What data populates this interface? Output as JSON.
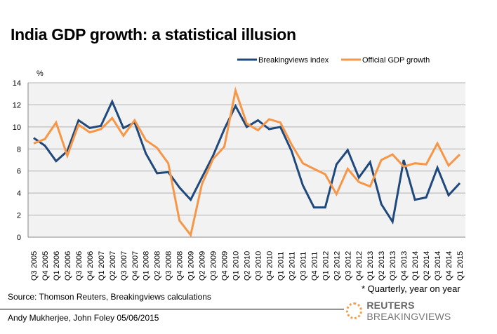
{
  "header": {
    "title": "India GDP growth: a statistical illusion"
  },
  "footer": {
    "source": "Source: Thomson Reuters, Breakingviews calculations",
    "note": "* Quarterly,  year on year",
    "author": "Andy Mukherjee, John Foley 05/06/2015",
    "logo_bold": "REUTERS",
    "logo_rest": " BREAKINGVIEWS",
    "logo_icon": "reuters-dot-sphere-icon"
  },
  "chart_data": {
    "type": "line",
    "title": "India GDP growth: a statistical illusion",
    "xlabel": "",
    "ylabel": "%",
    "ylim": [
      0,
      14
    ],
    "yticks": [
      0,
      2,
      4,
      6,
      8,
      10,
      12,
      14
    ],
    "grid": true,
    "legend": "top-right",
    "categories": [
      "Q3 2005",
      "Q4 2005",
      "Q1 2006",
      "Q2 2006",
      "Q3 2006",
      "Q4 2006",
      "Q1 2007",
      "Q2 2007",
      "Q3 2007",
      "Q4 2007",
      "Q1 2008",
      "Q2 2008",
      "Q3 2008",
      "Q4 2008",
      "Q1 2009",
      "Q2 2009",
      "Q3 2009",
      "Q4 2009",
      "Q1 2010",
      "Q2 2010",
      "Q3 2010",
      "Q4 2010",
      "Q1 2011",
      "Q2 2011",
      "Q3 2011",
      "Q4 2011",
      "Q1 2012",
      "Q2 2012",
      "Q3 2012",
      "Q4 2012",
      "Q1 2013",
      "Q2 2013",
      "Q3 2013",
      "Q4 2013",
      "Q1 2014",
      "Q2 2014",
      "Q3 2014",
      "Q4 2014",
      "Q1 2015"
    ],
    "series": [
      {
        "name": "Breakingviews index",
        "color": "#1f497d",
        "values": [
          9.0,
          8.3,
          6.9,
          7.8,
          10.6,
          9.9,
          10.1,
          12.3,
          9.9,
          10.4,
          7.6,
          5.8,
          5.9,
          4.5,
          3.4,
          5.4,
          7.4,
          9.8,
          11.9,
          10.0,
          10.6,
          9.8,
          10.0,
          7.8,
          4.7,
          2.7,
          2.7,
          6.6,
          7.9,
          5.4,
          6.8,
          3.0,
          1.4,
          7.0,
          3.4,
          3.6,
          6.3,
          3.8,
          4.9
        ]
      },
      {
        "name": "Official GDP growth",
        "color": "#f79646",
        "values": [
          8.5,
          8.9,
          10.4,
          7.4,
          10.2,
          9.5,
          9.8,
          10.8,
          9.2,
          10.6,
          8.8,
          8.1,
          6.7,
          1.5,
          0.2,
          4.8,
          7.1,
          8.2,
          13.3,
          10.3,
          9.7,
          10.7,
          10.4,
          8.4,
          6.7,
          6.2,
          5.7,
          3.9,
          6.2,
          5.0,
          4.6,
          7.0,
          7.5,
          6.4,
          6.7,
          6.6,
          8.5,
          6.5,
          7.5
        ]
      }
    ]
  }
}
